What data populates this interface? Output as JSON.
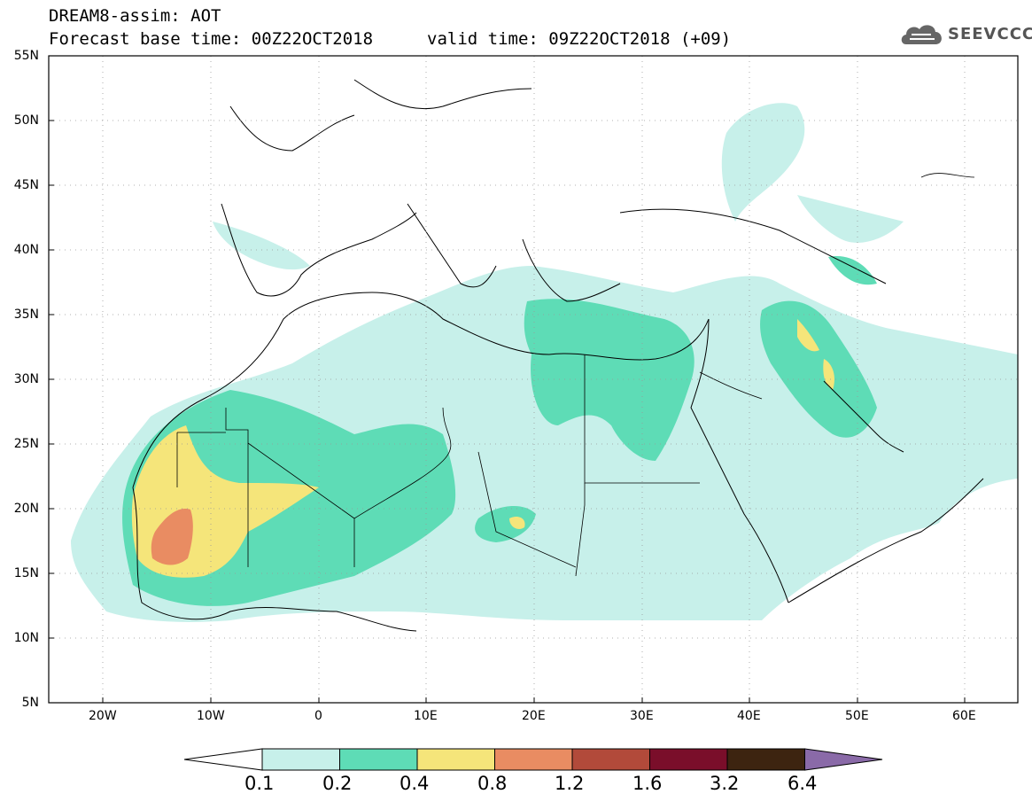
{
  "header": {
    "model_line": "DREAM8-assim: AOT",
    "base_time_line": "Forecast base time: 00Z22OCT2018",
    "valid_time_line": "valid time: 09Z22OCT2018 (+09)"
  },
  "logo": {
    "text": "SEEVCCC",
    "icon": "cloud-icon"
  },
  "map": {
    "lat_labels": [
      "55N",
      "50N",
      "45N",
      "40N",
      "35N",
      "30N",
      "25N",
      "20N",
      "15N",
      "10N",
      "5N"
    ],
    "lon_labels": [
      "20W",
      "10W",
      "0",
      "10E",
      "20E",
      "30E",
      "40E",
      "50E",
      "60E"
    ]
  },
  "colorbar": {
    "labels": [
      "0.1",
      "0.2",
      "0.4",
      "0.8",
      "1.2",
      "1.6",
      "3.2",
      "6.4"
    ],
    "colors": [
      "#c7f0ea",
      "#5edcb6",
      "#f5e57a",
      "#e98c62",
      "#b24a3a",
      "#7a0e2a",
      "#3d2410",
      "#8a6aa8"
    ]
  }
}
